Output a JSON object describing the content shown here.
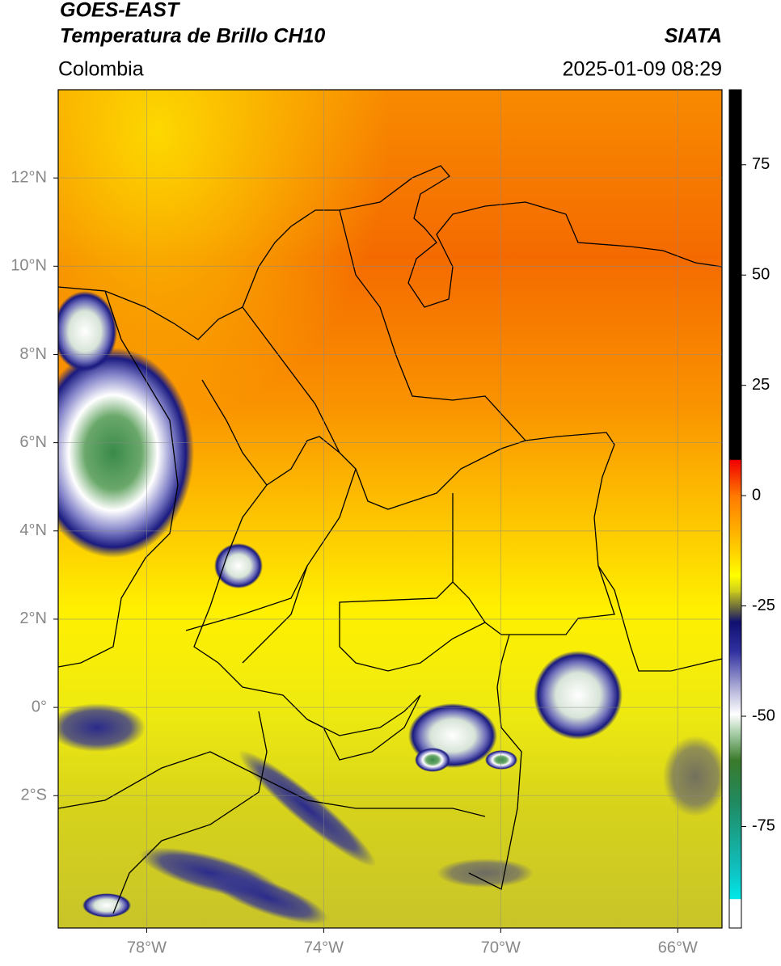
{
  "header": {
    "title": "GOES-EAST",
    "subtitle": "Temperatura de Brillo CH10",
    "region": "Colombia",
    "source": "SIATA",
    "timestamp": "2025-01-09 08:29"
  },
  "map": {
    "lonlim": [
      -80,
      -65
    ],
    "latlim": [
      -5,
      14
    ],
    "xticks": [
      {
        "value": -78,
        "label": "78°W"
      },
      {
        "value": -74,
        "label": "74°W"
      },
      {
        "value": -70,
        "label": "70°W"
      },
      {
        "value": -66,
        "label": "66°W"
      }
    ],
    "yticks": [
      {
        "value": 12,
        "label": "12°N"
      },
      {
        "value": 10,
        "label": "10°N"
      },
      {
        "value": 8,
        "label": "8°N"
      },
      {
        "value": 6,
        "label": "6°N"
      },
      {
        "value": 4,
        "label": "4°N"
      },
      {
        "value": 2,
        "label": "2°N"
      },
      {
        "value": 0,
        "label": "0°"
      },
      {
        "value": -2,
        "label": "2°S"
      }
    ],
    "grid": true
  },
  "colorbar": {
    "lim": [
      -98,
      92
    ],
    "ticks": [
      75,
      50,
      25,
      0,
      -25,
      -50,
      -75
    ]
  }
}
